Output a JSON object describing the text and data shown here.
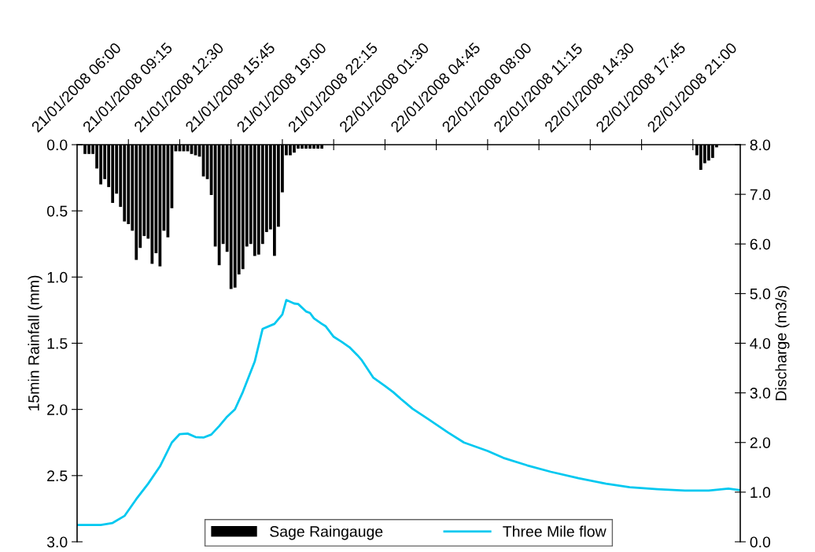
{
  "chart_data": {
    "type": "bar",
    "ylabel": "15min Rainfall (mm)",
    "y2label": "Discharge (m3/s)",
    "xlim": [
      "2008-01-21T06:00",
      "2008-01-23T00:00"
    ],
    "xticks": [
      {
        "value": "2008-01-21T06:00",
        "label": "21/01/2008 06:00"
      },
      {
        "value": "2008-01-21T09:15",
        "label": "21/01/2008 09:15"
      },
      {
        "value": "2008-01-21T12:30",
        "label": "21/01/2008 12:30"
      },
      {
        "value": "2008-01-21T15:45",
        "label": "21/01/2008 15:45"
      },
      {
        "value": "2008-01-21T19:00",
        "label": "21/01/2008 19:00"
      },
      {
        "value": "2008-01-21T22:15",
        "label": "21/01/2008 22:15"
      },
      {
        "value": "2008-01-22T01:30",
        "label": "22/01/2008 01:30"
      },
      {
        "value": "2008-01-22T04:45",
        "label": "22/01/2008 04:45"
      },
      {
        "value": "2008-01-22T08:00",
        "label": "22/01/2008 08:00"
      },
      {
        "value": "2008-01-22T11:15",
        "label": "22/01/2008 11:15"
      },
      {
        "value": "2008-01-22T14:30",
        "label": "22/01/2008 14:30"
      },
      {
        "value": "2008-01-22T17:45",
        "label": "22/01/2008 17:45"
      },
      {
        "value": "2008-01-22T21:00",
        "label": "22/01/2008 21:00"
      }
    ],
    "ylim": [
      3.0,
      0.0
    ],
    "yticks": [
      {
        "value": 0,
        "label": "0.0"
      },
      {
        "value": 0.5,
        "label": "0.5"
      },
      {
        "value": 1,
        "label": "1.0"
      },
      {
        "value": 1.5,
        "label": "1.5"
      },
      {
        "value": 2,
        "label": "2.0"
      },
      {
        "value": 2.5,
        "label": "2.5"
      },
      {
        "value": 3,
        "label": "3.0"
      }
    ],
    "y2lim": [
      0,
      8
    ],
    "y2ticks": [
      {
        "value": 0,
        "label": "0.0"
      },
      {
        "value": 1,
        "label": "1.0"
      },
      {
        "value": 2,
        "label": "2.0"
      },
      {
        "value": 3,
        "label": "3.0"
      },
      {
        "value": 4,
        "label": "4.0"
      },
      {
        "value": 5,
        "label": "5.0"
      },
      {
        "value": 6,
        "label": "6.0"
      },
      {
        "value": 7,
        "label": "7.0"
      },
      {
        "value": 8,
        "label": "8.0"
      }
    ],
    "grid": false,
    "legend": "bottom",
    "series": [
      {
        "name": "Sage Raingauge",
        "color": "#000000",
        "x": [
          "2008-01-21T06:30",
          "2008-01-21T06:45",
          "2008-01-21T07:00",
          "2008-01-21T07:15",
          "2008-01-21T07:30",
          "2008-01-21T07:45",
          "2008-01-21T08:00",
          "2008-01-21T08:15",
          "2008-01-21T08:30",
          "2008-01-21T08:45",
          "2008-01-21T09:00",
          "2008-01-21T09:15",
          "2008-01-21T09:30",
          "2008-01-21T09:45",
          "2008-01-21T10:00",
          "2008-01-21T10:15",
          "2008-01-21T10:30",
          "2008-01-21T10:45",
          "2008-01-21T11:00",
          "2008-01-21T11:15",
          "2008-01-21T11:30",
          "2008-01-21T11:45",
          "2008-01-21T12:00",
          "2008-01-21T12:15",
          "2008-01-21T12:30",
          "2008-01-21T12:45",
          "2008-01-21T13:00",
          "2008-01-21T13:15",
          "2008-01-21T13:30",
          "2008-01-21T13:45",
          "2008-01-21T14:00",
          "2008-01-21T14:15",
          "2008-01-21T14:30",
          "2008-01-21T14:45",
          "2008-01-21T15:00",
          "2008-01-21T15:15",
          "2008-01-21T15:30",
          "2008-01-21T15:45",
          "2008-01-21T16:00",
          "2008-01-21T16:15",
          "2008-01-21T16:30",
          "2008-01-21T16:45",
          "2008-01-21T17:00",
          "2008-01-21T17:15",
          "2008-01-21T17:30",
          "2008-01-21T17:45",
          "2008-01-21T18:00",
          "2008-01-21T18:15",
          "2008-01-21T18:30",
          "2008-01-21T18:45",
          "2008-01-21T19:00",
          "2008-01-21T19:15",
          "2008-01-21T19:30",
          "2008-01-21T19:45",
          "2008-01-21T20:00",
          "2008-01-21T20:15",
          "2008-01-21T20:30",
          "2008-01-21T20:45",
          "2008-01-21T21:00",
          "2008-01-21T21:15",
          "2008-01-21T21:30",
          "2008-01-22T21:15",
          "2008-01-22T21:30",
          "2008-01-22T21:45",
          "2008-01-22T22:00",
          "2008-01-22T22:15",
          "2008-01-22T22:30"
        ],
        "values": [
          0.07,
          0.07,
          0.07,
          0.18,
          0.3,
          0.26,
          0.32,
          0.44,
          0.37,
          0.47,
          0.58,
          0.6,
          0.65,
          0.87,
          0.78,
          0.69,
          0.71,
          0.9,
          0.82,
          0.92,
          0.65,
          0.7,
          0.48,
          0.05,
          0.05,
          0.05,
          0.05,
          0.07,
          0.08,
          0.09,
          0.24,
          0.26,
          0.38,
          0.77,
          0.91,
          0.75,
          0.81,
          1.09,
          1.08,
          0.98,
          0.94,
          0.77,
          0.75,
          0.84,
          0.83,
          0.75,
          0.66,
          0.64,
          0.84,
          0.62,
          0.36,
          0.08,
          0.08,
          0.06,
          0.03,
          0.03,
          0.03,
          0.03,
          0.03,
          0.03,
          0.03,
          0.08,
          0.19,
          0.14,
          0.12,
          0.1,
          0.02
        ]
      },
      {
        "name": "Three Mile flow",
        "type": "line",
        "axis": "y2",
        "color": "#00c8f0",
        "marker": "none",
        "line_style": "solid",
        "x": [
          "2008-01-21T06:00",
          "2008-01-21T07:30",
          "2008-01-21T08:15",
          "2008-01-21T09:00",
          "2008-01-21T09:45",
          "2008-01-21T10:30",
          "2008-01-21T11:15",
          "2008-01-21T12:00",
          "2008-01-21T12:30",
          "2008-01-21T13:00",
          "2008-01-21T13:30",
          "2008-01-21T14:00",
          "2008-01-21T14:30",
          "2008-01-21T15:00",
          "2008-01-21T15:30",
          "2008-01-21T16:00",
          "2008-01-21T16:30",
          "2008-01-21T17:15",
          "2008-01-21T17:45",
          "2008-01-21T18:30",
          "2008-01-21T19:00",
          "2008-01-21T19:15",
          "2008-01-21T19:45",
          "2008-01-21T20:00",
          "2008-01-21T20:30",
          "2008-01-21T20:45",
          "2008-01-21T21:00",
          "2008-01-21T21:30",
          "2008-01-21T21:45",
          "2008-01-21T22:15",
          "2008-01-21T22:45",
          "2008-01-21T23:15",
          "2008-01-21T23:45",
          "2008-01-22T00:00",
          "2008-01-22T00:45",
          "2008-01-22T01:30",
          "2008-01-22T02:00",
          "2008-01-22T02:30",
          "2008-01-22T03:15",
          "2008-01-22T04:15",
          "2008-01-22T05:30",
          "2008-01-22T06:30",
          "2008-01-22T08:00",
          "2008-01-22T09:00",
          "2008-01-22T10:30",
          "2008-01-22T12:00",
          "2008-01-22T13:45",
          "2008-01-22T15:30",
          "2008-01-22T17:00",
          "2008-01-22T18:45",
          "2008-01-22T20:30",
          "2008-01-22T22:00",
          "2008-01-22T23:15",
          "2008-01-23T00:00"
        ],
        "values": [
          0.34,
          0.34,
          0.38,
          0.52,
          0.86,
          1.17,
          1.52,
          2.0,
          2.17,
          2.18,
          2.11,
          2.1,
          2.16,
          2.33,
          2.52,
          2.67,
          3.02,
          3.63,
          4.29,
          4.39,
          4.58,
          4.87,
          4.8,
          4.79,
          4.64,
          4.61,
          4.5,
          4.39,
          4.34,
          4.13,
          4.03,
          3.92,
          3.76,
          3.67,
          3.31,
          3.14,
          3.02,
          2.88,
          2.68,
          2.47,
          2.2,
          2.0,
          1.83,
          1.69,
          1.54,
          1.41,
          1.28,
          1.17,
          1.1,
          1.06,
          1.03,
          1.03,
          1.07,
          1.04
        ]
      }
    ]
  }
}
